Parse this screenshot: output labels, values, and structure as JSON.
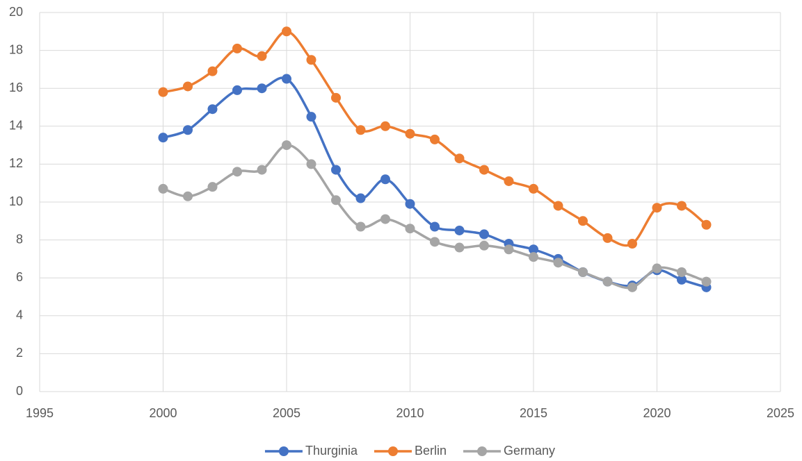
{
  "chart_data": {
    "type": "line",
    "x": [
      2000,
      2001,
      2002,
      2003,
      2004,
      2005,
      2006,
      2007,
      2008,
      2009,
      2010,
      2011,
      2012,
      2013,
      2014,
      2015,
      2016,
      2017,
      2018,
      2019,
      2020,
      2021,
      2022
    ],
    "series": [
      {
        "name": "Thurginia",
        "color": "#4472c4",
        "values": [
          13.4,
          13.8,
          14.9,
          15.9,
          16.0,
          16.5,
          14.5,
          11.7,
          10.2,
          11.2,
          9.9,
          8.7,
          8.5,
          8.3,
          7.8,
          7.5,
          7.0,
          6.3,
          5.8,
          5.6,
          6.4,
          5.9,
          5.5
        ]
      },
      {
        "name": "Berlin",
        "color": "#ed7d31",
        "values": [
          15.8,
          16.1,
          16.9,
          18.1,
          17.7,
          19.0,
          17.5,
          15.5,
          13.8,
          14.0,
          13.6,
          13.3,
          12.3,
          11.7,
          11.1,
          10.7,
          9.8,
          9.0,
          8.1,
          7.8,
          9.7,
          9.8,
          8.8
        ]
      },
      {
        "name": "Germany",
        "color": "#a5a5a5",
        "values": [
          10.7,
          10.3,
          10.8,
          11.6,
          11.7,
          13.0,
          12.0,
          10.1,
          8.7,
          9.1,
          8.6,
          7.9,
          7.6,
          7.7,
          7.5,
          7.1,
          6.8,
          6.3,
          5.8,
          5.5,
          6.5,
          6.3,
          5.8
        ]
      }
    ],
    "xlim": [
      1995,
      2025
    ],
    "xticks": [
      1995,
      2000,
      2005,
      2010,
      2015,
      2020,
      2025
    ],
    "ylim": [
      0,
      20
    ],
    "yticks": [
      0,
      2,
      4,
      6,
      8,
      10,
      12,
      14,
      16,
      18,
      20
    ],
    "grid": true,
    "legend": "bottom",
    "smooth": true
  }
}
